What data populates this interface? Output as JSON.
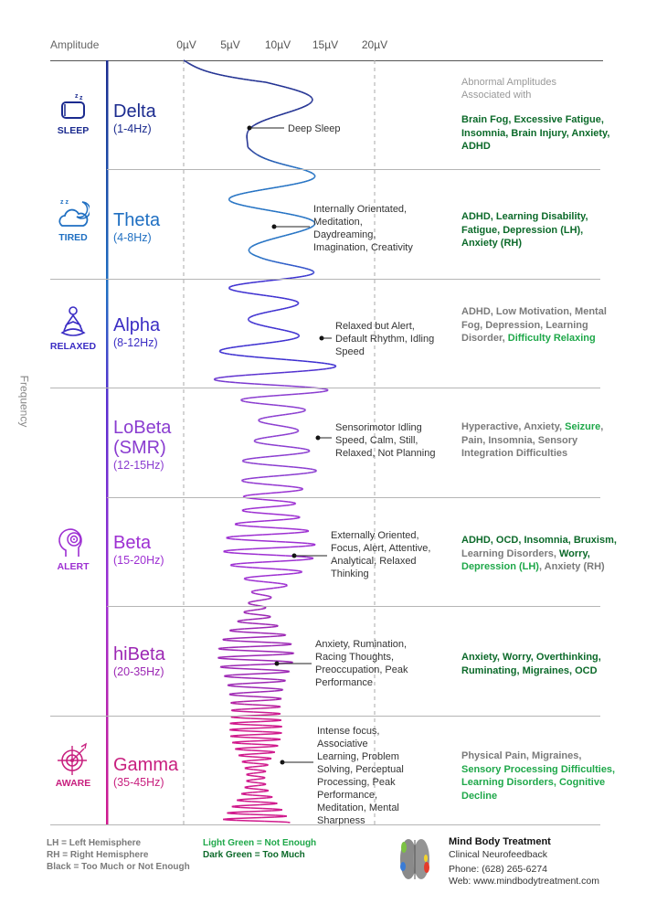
{
  "header": {
    "amplitude_label": "Amplitude",
    "ticks": [
      "0µV",
      "5µV",
      "10µV",
      "15µV",
      "20µV"
    ],
    "frequency_label": "Frequency"
  },
  "right_header": "Abnormal Amplitudes Associated with",
  "colors": {
    "dark_green": "#0c6a2a",
    "light_green": "#1fa84a",
    "black_gray": "#7a7a7a"
  },
  "bands": [
    {
      "name": "Delta",
      "hz": "(1-4Hz)",
      "state": "SLEEP",
      "icon": "pillow-icon",
      "color": "#1b2b8f",
      "callout": "Deep Sleep",
      "conditions": [
        {
          "t": "Brain Fog, Excessive Fatigue, Insomnia, Brain Injury, Anxiety, ADHD",
          "c": "dark"
        }
      ]
    },
    {
      "name": "Theta",
      "hz": "(4-8Hz)",
      "state": "TIRED",
      "icon": "cloud-moon-icon",
      "color": "#1f6fc2",
      "callout": "Internally Orientated, Meditation, Daydreaming, Imagination, Creativity",
      "conditions": [
        {
          "t": "ADHD, Learning Disability, Fatigue, Depression (LH), Anxiety (RH)",
          "c": "dark"
        }
      ]
    },
    {
      "name": "Alpha",
      "hz": "(8-12Hz)",
      "state": "RELAXED",
      "icon": "meditation-icon",
      "color": "#3b2dc4",
      "callout": "Relaxed but Alert, Default Rhythm, Idling Speed",
      "conditions": [
        {
          "t": "ADHD, Low Motivation, Mental Fog, Depression, Learning Disorder, ",
          "c": "black"
        },
        {
          "t": "Difficulty Relaxing",
          "c": "light"
        }
      ]
    },
    {
      "name": "LoBeta (SMR)",
      "hz": "(12-15Hz)",
      "state": "",
      "icon": "",
      "color": "#8a3cd0",
      "callout": "Sensorimotor Idling Speed, Calm, Still, Relaxed, Not Planning",
      "conditions": [
        {
          "t": "Hyperactive, Anxiety, ",
          "c": "black"
        },
        {
          "t": "Seizure",
          "c": "light"
        },
        {
          "t": ", Pain, Insomnia, Sensory Integration Difficulties",
          "c": "black"
        }
      ]
    },
    {
      "name": "Beta",
      "hz": "(15-20Hz)",
      "state": "ALERT",
      "icon": "head-focus-icon",
      "color": "#9d2fd2",
      "callout": "Externally Oriented, Focus, Alert, Attentive, Analytical, Relaxed Thinking",
      "conditions": [
        {
          "t": "ADHD, OCD, Insomnia, Bruxism, ",
          "c": "dark"
        },
        {
          "t": "Learning Disorders, ",
          "c": "black"
        },
        {
          "t": "Worry, ",
          "c": "dark"
        },
        {
          "t": "Depression (LH)",
          "c": "light"
        },
        {
          "t": ", Anxiety (RH)",
          "c": "black"
        }
      ]
    },
    {
      "name": "hiBeta",
      "hz": "(20-35Hz)",
      "state": "",
      "icon": "",
      "color": "#9c27b4",
      "callout": "Anxiety, Rumination, Racing Thoughts, Preoccupation, Peak Performance",
      "conditions": [
        {
          "t": "Anxiety, Worry, Overthinking, Ruminating, Migraines, OCD",
          "c": "dark"
        }
      ]
    },
    {
      "name": "Gamma",
      "hz": "(35-45Hz)",
      "state": "AWARE",
      "icon": "target-icon",
      "color": "#c8207f",
      "callout": "Intense focus, Associative Learning, Problem Solving, Perceptual Processing, Peak Performance, Meditation, Mental Sharpness",
      "conditions": [
        {
          "t": "Physical Pain, Migraines, ",
          "c": "black"
        },
        {
          "t": "Sensory Processing Difficulties, Learning Disorders, Cognitive Decline",
          "c": "light"
        }
      ]
    }
  ],
  "legend": {
    "lh": "LH = Left Hemisphere",
    "rh": "RH = Right Hemisphere",
    "black": "Black = Too Much or Not Enough",
    "light": "Light Green = Not Enough",
    "dark": "Dark Green = Too Much"
  },
  "company": {
    "name": "Mind Body Treatment",
    "tagline": "Clinical Neurofeedback",
    "phone": "Phone: (628) 265-6274",
    "web": "Web: www.mindbodytreatment.com"
  }
}
